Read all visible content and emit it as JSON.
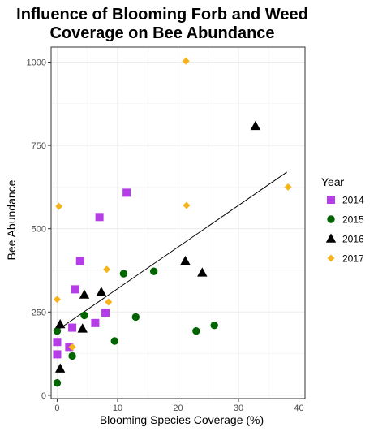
{
  "chart_data": {
    "type": "scatter",
    "title_lines": [
      "Influence of Blooming Forb and Weed",
      "Coverage on Bee Abundance"
    ],
    "xlabel": "Blooming Species Coverage (%)",
    "ylabel": "Bee Abundance",
    "xlim": [
      -1,
      41
    ],
    "ylim": [
      -10,
      1045
    ],
    "x_ticks": [
      0,
      10,
      20,
      30,
      40
    ],
    "y_ticks": [
      0,
      250,
      500,
      750,
      1000
    ],
    "grid": true,
    "legend": {
      "title": "Year",
      "position": "right"
    },
    "series": [
      {
        "name": "2014",
        "marker": "square",
        "color": "#b43de8",
        "points": [
          [
            0,
            123
          ],
          [
            0,
            160
          ],
          [
            2,
            145
          ],
          [
            2.5,
            203
          ],
          [
            3,
            318
          ],
          [
            3.8,
            403
          ],
          [
            6.3,
            217
          ],
          [
            7,
            535
          ],
          [
            8,
            248
          ],
          [
            11.5,
            608
          ]
        ]
      },
      {
        "name": "2015",
        "marker": "circle",
        "color": "#006400",
        "points": [
          [
            0,
            37
          ],
          [
            0,
            193
          ],
          [
            2.5,
            118
          ],
          [
            4.5,
            240
          ],
          [
            9.5,
            163
          ],
          [
            11,
            365
          ],
          [
            13,
            235
          ],
          [
            16,
            372
          ],
          [
            23,
            193
          ],
          [
            26,
            210
          ]
        ]
      },
      {
        "name": "2016",
        "marker": "triangle",
        "color": "#000000",
        "points": [
          [
            0.5,
            80
          ],
          [
            0.5,
            213
          ],
          [
            4.2,
            200
          ],
          [
            4.5,
            302
          ],
          [
            7.3,
            310
          ],
          [
            21.2,
            403
          ],
          [
            24,
            368
          ],
          [
            32.8,
            808
          ]
        ]
      },
      {
        "name": "2017",
        "marker": "diamond",
        "color": "#f6b41c",
        "points": [
          [
            0,
            288
          ],
          [
            0.3,
            567
          ],
          [
            2.5,
            145
          ],
          [
            8.2,
            378
          ],
          [
            8.5,
            280
          ],
          [
            21.3,
            1003
          ],
          [
            21.4,
            570
          ],
          [
            38.2,
            625
          ]
        ]
      }
    ],
    "trendline": {
      "x": [
        0,
        38
      ],
      "y": [
        195,
        670
      ],
      "color": "#000000"
    }
  }
}
